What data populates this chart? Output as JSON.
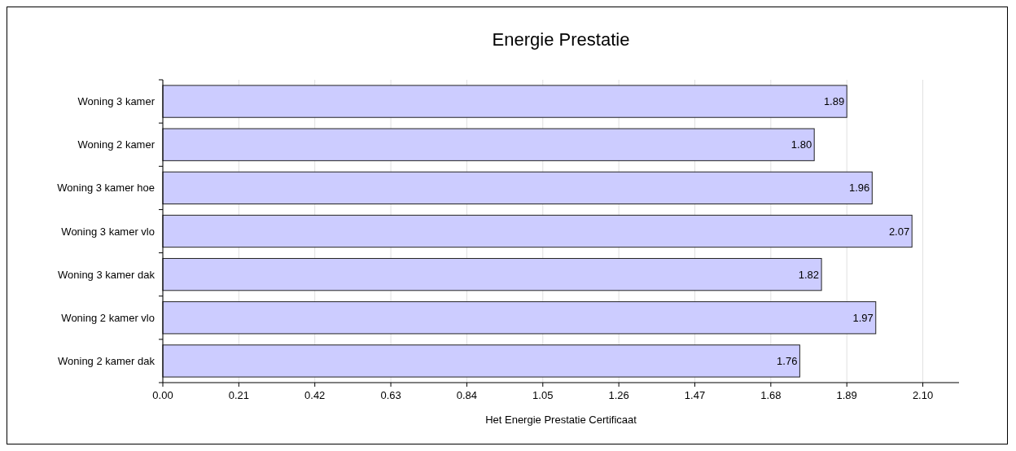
{
  "chart_data": {
    "type": "bar",
    "orientation": "horizontal",
    "title": "Energie Prestatie",
    "xlabel": "Het Energie Prestatie Certificaat",
    "categories": [
      "Woning 3 kamer",
      "Woning 2 kamer",
      "Woning 3 kamer hoe",
      "Woning 3 kamer vlo",
      "Woning 3 kamer dak",
      "Woning 2 kamer vlo",
      "Woning 2 kamer dak"
    ],
    "values": [
      1.89,
      1.8,
      1.96,
      2.07,
      1.82,
      1.97,
      1.76
    ],
    "value_labels": [
      "1.89",
      "1.80",
      "1.96",
      "2.07",
      "1.82",
      "1.97",
      "1.76"
    ],
    "color": "#ccccff",
    "xlim": [
      0,
      2.2
    ],
    "xticks": [
      {
        "value": 0,
        "label": "0.00"
      },
      0.21,
      0.42,
      0.63,
      0.84,
      1.05,
      1.26,
      1.47,
      1.68,
      1.89,
      {
        "value": 2.1,
        "label": "2.10"
      }
    ],
    "grid": "x"
  }
}
